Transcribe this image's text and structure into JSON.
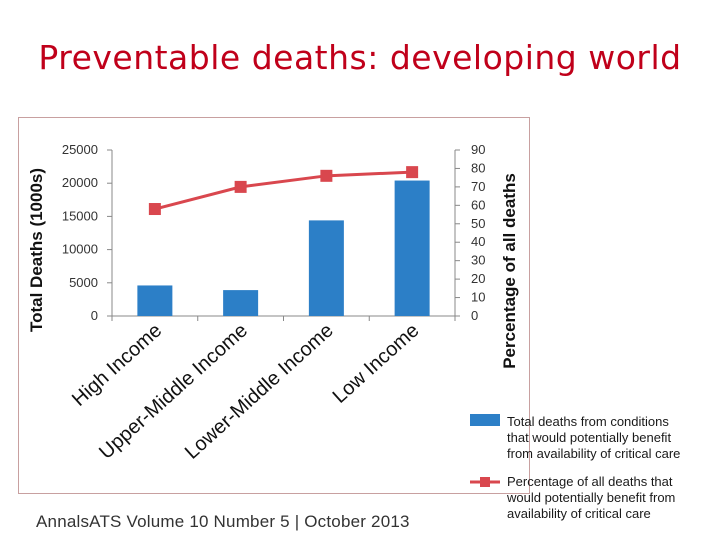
{
  "slide": {
    "title": "Preventable deaths: developing world",
    "citation": "AnnalsATS Volume 10 Number 5 | October 2013"
  },
  "colors": {
    "title": "#c0001a",
    "bar": "#2c7fc7",
    "line": "#d9474e"
  },
  "chart_data": {
    "type": "bar",
    "title": "",
    "categories": [
      "High Income",
      "Upper-Middle Income",
      "Lower-Middle Income",
      "Low Income"
    ],
    "ylabel": "Total Deaths (1000s)",
    "y2label": "Percentage of all deaths",
    "ylim": [
      0,
      25000
    ],
    "y2lim": [
      0,
      90
    ],
    "yticks": [
      "0",
      "5000",
      "10000",
      "15000",
      "20000",
      "25000"
    ],
    "y2ticks": [
      "0",
      "10",
      "20",
      "30",
      "40",
      "50",
      "60",
      "70",
      "80",
      "90"
    ],
    "series": [
      {
        "name": "Total deaths from conditions that would potentially benefit from availability of critical care",
        "legend_lines": [
          "Total deaths from conditions",
          "that would potentially benefit",
          "from availability of critical care"
        ],
        "kind": "bar",
        "axis": "left",
        "values": [
          4600,
          3900,
          14400,
          20400
        ]
      },
      {
        "name": "Percentage of all deaths that would potentially benefit from availability of critical care",
        "legend_lines": [
          "Percentage of all deaths that",
          "would potentially benefit from",
          "availability of critical care"
        ],
        "kind": "line",
        "axis": "right",
        "values": [
          58,
          70,
          76,
          78
        ]
      }
    ]
  }
}
